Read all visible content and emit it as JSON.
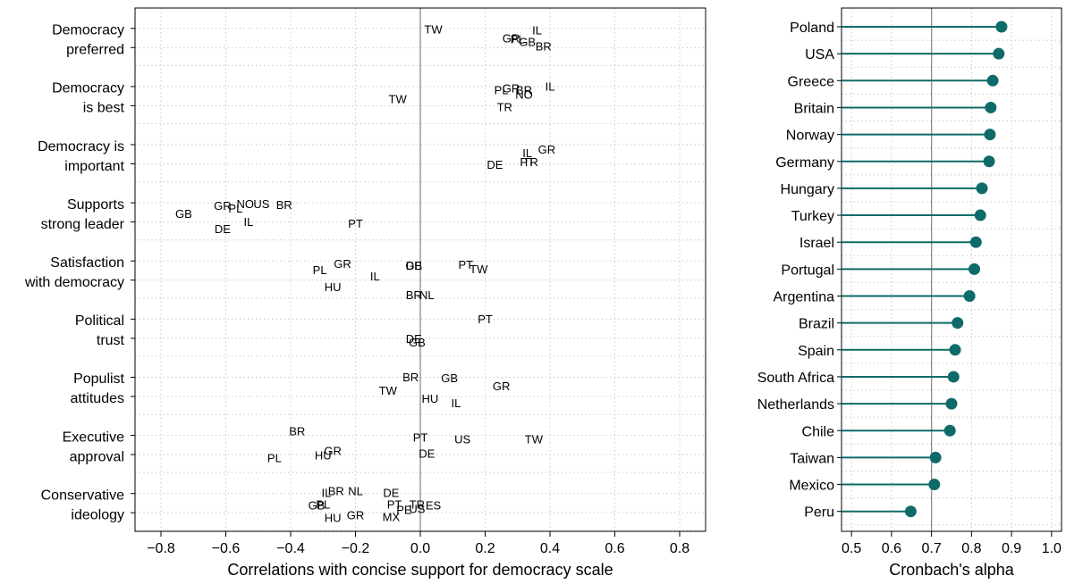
{
  "chart_data": [
    {
      "type": "scatter",
      "xlabel": "Correlations with concise support for democracy scale",
      "xlim": [
        -0.88,
        0.88
      ],
      "xticks": [
        "−0.8",
        "−0.6",
        "−0.4",
        "−0.2",
        "0.0",
        "0.2",
        "0.4",
        "0.6",
        "0.8"
      ],
      "grid": true,
      "reference_line": 0.0,
      "rows": [
        {
          "label": [
            "Democracy",
            "preferred"
          ],
          "points": [
            {
              "c": "TW",
              "x": 0.04,
              "o": -4
            },
            {
              "c": "IL",
              "x": 0.36,
              "o": -3
            },
            {
              "c": "GR",
              "x": 0.28,
              "o": 6
            },
            {
              "c": "PL",
              "x": 0.3,
              "o": 7
            },
            {
              "c": "GB",
              "x": 0.33,
              "o": 10
            },
            {
              "c": "BR",
              "x": 0.38,
              "o": 15
            }
          ]
        },
        {
          "label": [
            "Democracy",
            "is best"
          ],
          "points": [
            {
              "c": "IL",
              "x": 0.4,
              "o": -5
            },
            {
              "c": "PL",
              "x": 0.25,
              "o": -1
            },
            {
              "c": "GR",
              "x": 0.28,
              "o": -3
            },
            {
              "c": "BR",
              "x": 0.32,
              "o": -1
            },
            {
              "c": "NO",
              "x": 0.32,
              "o": 4
            },
            {
              "c": "TW",
              "x": -0.07,
              "o": 9
            },
            {
              "c": "TR",
              "x": 0.26,
              "o": 18
            }
          ]
        },
        {
          "label": [
            "Democracy is",
            "important"
          ],
          "points": [
            {
              "c": "GR",
              "x": 0.39,
              "o": 0
            },
            {
              "c": "IL",
              "x": 0.33,
              "o": 4
            },
            {
              "c": "PT",
              "x": 0.33,
              "o": 14
            },
            {
              "c": "TR",
              "x": 0.34,
              "o": 14
            },
            {
              "c": "DE",
              "x": 0.23,
              "o": 17
            }
          ]
        },
        {
          "label": [
            "Supports",
            "strong leader"
          ],
          "points": [
            {
              "c": "GR",
              "x": -0.61,
              "o": -2
            },
            {
              "c": "PL",
              "x": -0.57,
              "o": 1
            },
            {
              "c": "NO",
              "x": -0.54,
              "o": -4
            },
            {
              "c": "US",
              "x": -0.49,
              "o": -4
            },
            {
              "c": "BR",
              "x": -0.42,
              "o": -3
            },
            {
              "c": "GB",
              "x": -0.73,
              "o": 7
            },
            {
              "c": "IL",
              "x": -0.53,
              "o": 16
            },
            {
              "c": "PT",
              "x": -0.2,
              "o": 18
            },
            {
              "c": "DE",
              "x": -0.61,
              "o": 24
            }
          ]
        },
        {
          "label": [
            "Satisfaction",
            "with democracy"
          ],
          "points": [
            {
              "c": "GR",
              "x": -0.24,
              "o": -2
            },
            {
              "c": "PL",
              "x": -0.31,
              "o": 5
            },
            {
              "c": "IL",
              "x": -0.14,
              "o": 12
            },
            {
              "c": "HU",
              "x": -0.27,
              "o": 24
            },
            {
              "c": "DE",
              "x": -0.02,
              "o": 0
            },
            {
              "c": "GB",
              "x": -0.02,
              "o": 0
            },
            {
              "c": "PT",
              "x": 0.14,
              "o": -1
            },
            {
              "c": "TW",
              "x": 0.18,
              "o": 4
            },
            {
              "c": "BR",
              "x": -0.02,
              "o": 33
            },
            {
              "c": "NL",
              "x": 0.02,
              "o": 33
            }
          ]
        },
        {
          "label": [
            "Political",
            "trust"
          ],
          "points": [
            {
              "c": "PT",
              "x": 0.2,
              "o": -5
            },
            {
              "c": "DE",
              "x": -0.02,
              "o": 17
            },
            {
              "c": "GB",
              "x": -0.01,
              "o": 21
            }
          ]
        },
        {
          "label": [
            "Populist",
            "attitudes"
          ],
          "points": [
            {
              "c": "BR",
              "x": -0.03,
              "o": -5
            },
            {
              "c": "GB",
              "x": 0.09,
              "o": -4
            },
            {
              "c": "GR",
              "x": 0.25,
              "o": 5
            },
            {
              "c": "TW",
              "x": -0.1,
              "o": 10
            },
            {
              "c": "HU",
              "x": 0.03,
              "o": 19
            },
            {
              "c": "IL",
              "x": 0.11,
              "o": 24
            }
          ]
        },
        {
          "label": [
            "Executive",
            "approval"
          ],
          "points": [
            {
              "c": "BR",
              "x": -0.38,
              "o": -10
            },
            {
              "c": "PT",
              "x": 0.0,
              "o": -3
            },
            {
              "c": "US",
              "x": 0.13,
              "o": -1
            },
            {
              "c": "TW",
              "x": 0.35,
              "o": -1
            },
            {
              "c": "GR",
              "x": -0.27,
              "o": 12
            },
            {
              "c": "HU",
              "x": -0.3,
              "o": 17
            },
            {
              "c": "DE",
              "x": 0.02,
              "o": 15
            },
            {
              "c": "PL",
              "x": -0.45,
              "o": 20
            }
          ]
        },
        {
          "label": [
            "Conservative",
            "ideology"
          ],
          "points": [
            {
              "c": "IL",
              "x": -0.29,
              "o": -6
            },
            {
              "c": "BR",
              "x": -0.26,
              "o": -8
            },
            {
              "c": "NL",
              "x": -0.2,
              "o": -8
            },
            {
              "c": "DE",
              "x": -0.09,
              "o": -6
            },
            {
              "c": "GB",
              "x": -0.32,
              "o": 8
            },
            {
              "c": "PL",
              "x": -0.3,
              "o": 7
            },
            {
              "c": "PT",
              "x": -0.08,
              "o": 7
            },
            {
              "c": "TR",
              "x": -0.01,
              "o": 7
            },
            {
              "c": "ES",
              "x": 0.04,
              "o": 8
            },
            {
              "c": "PE",
              "x": -0.05,
              "o": 13
            },
            {
              "c": "US",
              "x": -0.01,
              "o": 12
            },
            {
              "c": "GR",
              "x": -0.2,
              "o": 19
            },
            {
              "c": "HU",
              "x": -0.27,
              "o": 22
            },
            {
              "c": "MX",
              "x": -0.09,
              "o": 21
            }
          ]
        }
      ]
    },
    {
      "type": "scatter",
      "subtype": "lollipop",
      "xlabel": "Cronbach's alpha",
      "xlim": [
        0.475,
        1.025
      ],
      "xticks": [
        "0.5",
        "0.6",
        "0.7",
        "0.8",
        "0.9",
        "1.0"
      ],
      "grid": true,
      "reference_line": 0.7,
      "color": "#0f6b69",
      "categories": [
        "Poland",
        "USA",
        "Greece",
        "Britain",
        "Norway",
        "Germany",
        "Hungary",
        "Turkey",
        "Israel",
        "Portugal",
        "Argentina",
        "Brazil",
        "Spain",
        "South Africa",
        "Netherlands",
        "Chile",
        "Taiwan",
        "Mexico",
        "Peru"
      ],
      "values": [
        0.875,
        0.868,
        0.853,
        0.848,
        0.846,
        0.844,
        0.826,
        0.822,
        0.811,
        0.807,
        0.795,
        0.765,
        0.759,
        0.755,
        0.75,
        0.746,
        0.71,
        0.707,
        0.648
      ]
    }
  ]
}
